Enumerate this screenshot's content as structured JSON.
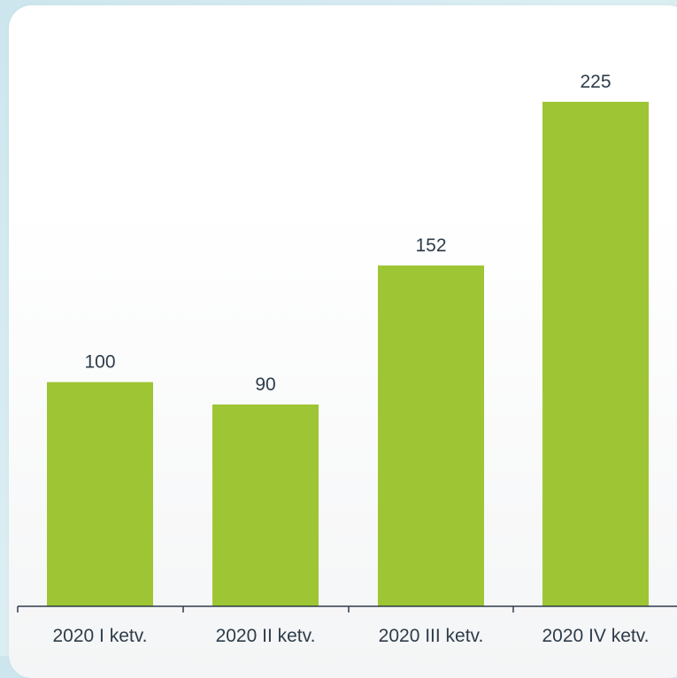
{
  "chart_data": {
    "type": "bar",
    "categories": [
      "2020 I ketv.",
      "2020 II ketv.",
      "2020 III ketv.",
      "2020 IV ketv."
    ],
    "values": [
      100,
      90,
      152,
      225
    ],
    "title": "",
    "xlabel": "",
    "ylabel": "",
    "ylim": [
      0,
      225
    ],
    "grid": false,
    "colors": {
      "bar": "#9ec634",
      "text": "#2e3c4a"
    }
  }
}
